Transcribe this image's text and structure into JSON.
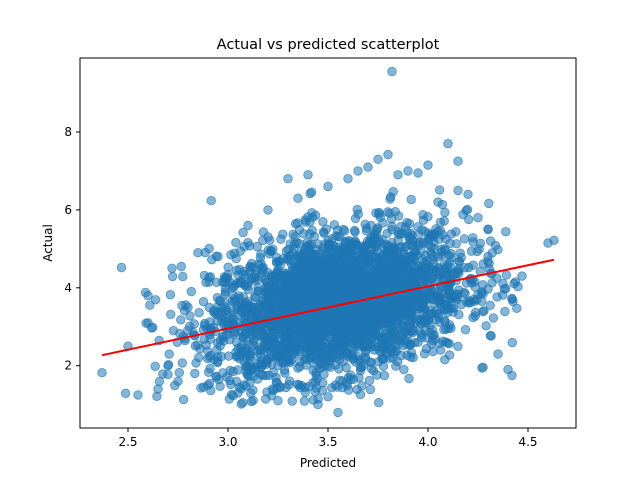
{
  "chart_data": {
    "type": "scatter",
    "title": "Actual vs predicted scatterplot",
    "xlabel": "Predicted",
    "ylabel": "Actual",
    "xlim": [
      2.26,
      4.74
    ],
    "ylim": [
      0.4,
      9.9
    ],
    "x_ticks": [
      "2.5",
      "3.0",
      "3.5",
      "4.0",
      "4.5"
    ],
    "y_ticks": [
      "2",
      "4",
      "6",
      "8"
    ],
    "grid": false,
    "marker_color": "#1f77b4",
    "marker_alpha": 0.55,
    "trend_color": "#ff0000",
    "trend_line": {
      "x": [
        2.37,
        4.63
      ],
      "y": [
        2.27,
        4.72
      ]
    },
    "cloud": {
      "x_center": 3.55,
      "x_std": 0.32,
      "y_center": 3.6,
      "y_std": 0.9
    },
    "outliers": {
      "x": [
        2.37,
        2.5,
        2.55,
        2.6,
        2.65,
        2.72,
        2.75,
        2.8,
        2.85,
        2.9,
        2.95,
        3.1,
        3.2,
        3.25,
        3.3,
        3.4,
        3.45,
        3.5,
        3.55,
        3.6,
        3.65,
        3.7,
        3.75,
        3.8,
        3.82,
        3.85,
        3.9,
        3.95,
        4.0,
        4.05,
        4.1,
        4.15,
        4.2,
        4.25,
        4.3,
        4.35,
        4.4,
        4.42,
        4.47,
        4.6,
        4.63,
        4.15,
        4.3,
        3.05,
        2.6,
        2.7,
        3.35,
        3.5
      ],
      "y": [
        1.82,
        2.5,
        1.25,
        3.8,
        1.4,
        4.5,
        1.6,
        3.5,
        4.9,
        1.5,
        4.8,
        5.6,
        6.0,
        1.1,
        6.8,
        6.9,
        1.0,
        6.6,
        0.8,
        6.8,
        7.0,
        7.1,
        7.3,
        7.42,
        9.55,
        6.9,
        7.0,
        6.95,
        7.15,
        6.2,
        7.7,
        6.5,
        6.4,
        5.8,
        5.5,
        2.3,
        1.9,
        1.75,
        4.3,
        5.15,
        5.22,
        7.25,
        4.8,
        1.3,
        3.1,
        2.0,
        6.3,
        1.2
      ]
    }
  }
}
